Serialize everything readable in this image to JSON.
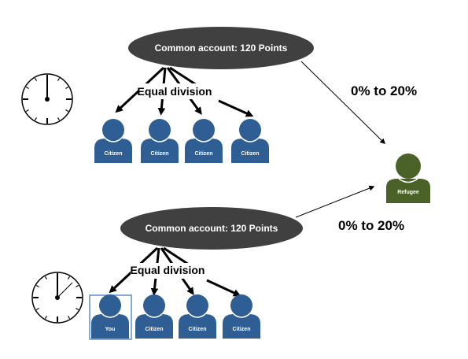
{
  "colors": {
    "ellipse": "#404040",
    "citizen": "#2e5e94",
    "refugee": "#4a6228",
    "you_frame": "#5b8fc7"
  },
  "top_group": {
    "account_label": "Common account: 120 Points",
    "division_label": "Equal division",
    "members": [
      "Citizen",
      "Citizen",
      "Citizen",
      "Citizen"
    ],
    "transfer_label": "0% to 20%",
    "clock_icon": "clock-icon"
  },
  "bottom_group": {
    "account_label": "Common account: 120 Points",
    "division_label": "Equal division",
    "members": [
      "You",
      "Citizen",
      "Citizen",
      "Citizen"
    ],
    "transfer_label": "0% to 20%",
    "clock_icon": "clock-icon"
  },
  "refugee": {
    "label": "Refugee"
  }
}
